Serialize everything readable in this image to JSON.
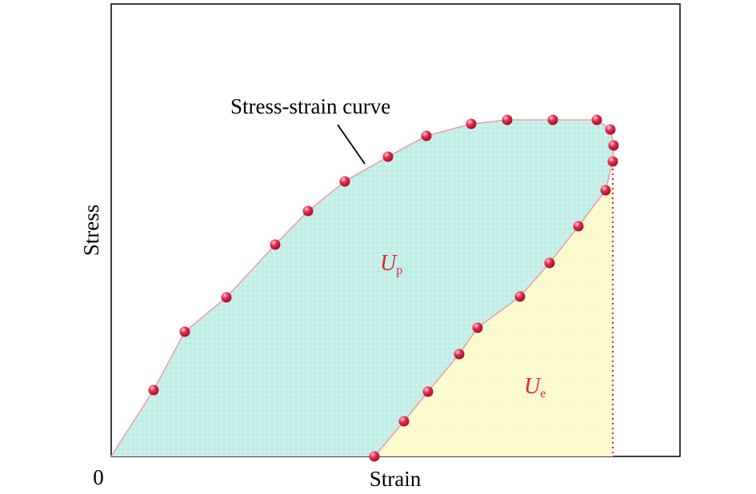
{
  "labels": {
    "y_axis": "Stress",
    "x_axis": "Strain",
    "origin": "0",
    "annotation": "Stress-strain curve",
    "region_plastic_main": "U",
    "region_plastic_sub": "p",
    "region_elastic_main": "U",
    "region_elastic_sub": "e"
  },
  "colors": {
    "frame": "#000000",
    "plastic_fill": "#c4efe8",
    "elastic_fill": "#fbfbcf",
    "curve_line": "#e9a0a8",
    "marker": "#e8294f",
    "marker_highlight": "#ffd0d8",
    "dotted_line": "#d2322e",
    "region_label": "#e0252f"
  }
}
